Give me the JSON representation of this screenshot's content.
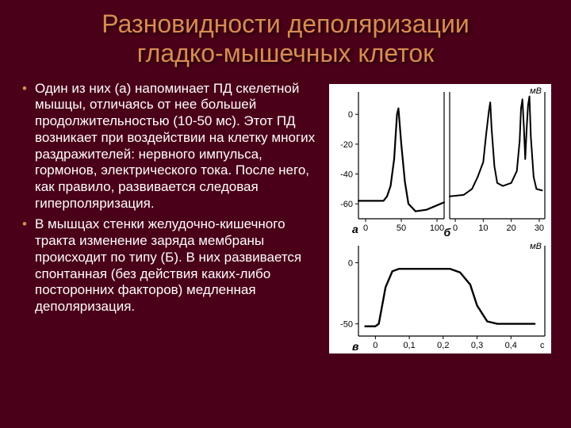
{
  "title_line1": "Разновидности деполяризации",
  "title_line2": "гладко-мышечных клеток",
  "bullets": [
    "Один из них (а) напоминает ПД скелетной мышцы, отличаясь от нее большей продолжительностью (10-50 мс). Этот ПД возникает при воздействии на клетку многих раздражителей: нервного импульса, гормонов, электрического тока. После него, как правило, развивается следовая гиперполяризация.",
    "В мышцах стенки желудочно-кишечного тракта изменение заряда мембраны происходит по типу (Б). В них развивается спонтанная (без действия каких-либо посторонних факторов) медленная деполяризация."
  ],
  "charts": {
    "panel_ab": {
      "type": "line",
      "ylabel": "мВ",
      "yticks": [
        0,
        -20,
        -40,
        -60
      ],
      "a": {
        "xticks": [
          0,
          50,
          100
        ],
        "label": "а",
        "trace": [
          [
            -10,
            -58
          ],
          [
            10,
            -58
          ],
          [
            25,
            -58
          ],
          [
            30,
            -55
          ],
          [
            35,
            -48
          ],
          [
            40,
            -30
          ],
          [
            44,
            0
          ],
          [
            46,
            4
          ],
          [
            50,
            -20
          ],
          [
            55,
            -45
          ],
          [
            60,
            -60
          ],
          [
            70,
            -65
          ],
          [
            85,
            -64
          ],
          [
            100,
            -61
          ],
          [
            110,
            -59
          ]
        ],
        "line_color": "#000000",
        "line_width": 2.2
      },
      "b": {
        "xticks": [
          0,
          10,
          20,
          30
        ],
        "label": "б",
        "trace": [
          [
            -2,
            -55
          ],
          [
            3,
            -54
          ],
          [
            6,
            -50
          ],
          [
            8,
            -42
          ],
          [
            10,
            -32
          ],
          [
            11,
            -14
          ],
          [
            12,
            2
          ],
          [
            12.5,
            8
          ],
          [
            13,
            -10
          ],
          [
            14,
            -35
          ],
          [
            15,
            -46
          ],
          [
            17,
            -48
          ],
          [
            20,
            -46
          ],
          [
            22,
            -38
          ],
          [
            23,
            -18
          ],
          [
            23.5,
            4
          ],
          [
            24,
            10
          ],
          [
            24.5,
            -8
          ],
          [
            25,
            -30
          ],
          [
            25.5,
            -10
          ],
          [
            26,
            6
          ],
          [
            26.5,
            12
          ],
          [
            27,
            -15
          ],
          [
            28,
            -42
          ],
          [
            29,
            -50
          ],
          [
            31,
            -51
          ]
        ],
        "line_color": "#000000",
        "line_width": 2.0
      },
      "ylim": [
        -70,
        15
      ],
      "background_color": "#ffffff",
      "axis_color": "#000000"
    },
    "panel_c": {
      "type": "line",
      "ylabel": "мВ",
      "yticks": [
        0,
        -50
      ],
      "xticks": [
        "0",
        "0,1",
        "0,2",
        "0,3",
        "0,4"
      ],
      "xunit": "с",
      "label": "в",
      "trace": [
        [
          -0.03,
          -52
        ],
        [
          0.0,
          -52
        ],
        [
          0.01,
          -50
        ],
        [
          0.03,
          -20
        ],
        [
          0.05,
          -7
        ],
        [
          0.07,
          -5
        ],
        [
          0.15,
          -5
        ],
        [
          0.22,
          -5
        ],
        [
          0.25,
          -8
        ],
        [
          0.28,
          -18
        ],
        [
          0.3,
          -35
        ],
        [
          0.33,
          -48
        ],
        [
          0.36,
          -50
        ],
        [
          0.42,
          -50
        ],
        [
          0.47,
          -50
        ]
      ],
      "ylim": [
        -60,
        10
      ],
      "xlim": [
        -0.05,
        0.5
      ],
      "line_color": "#000000",
      "line_width": 2.4,
      "background_color": "#ffffff",
      "axis_color": "#000000"
    },
    "tick_fontsize": 11,
    "label_fontsize": 14
  },
  "colors": {
    "slide_bg": "#4a0018",
    "title_color": "#d98c53",
    "body_text": "#ffffff"
  }
}
